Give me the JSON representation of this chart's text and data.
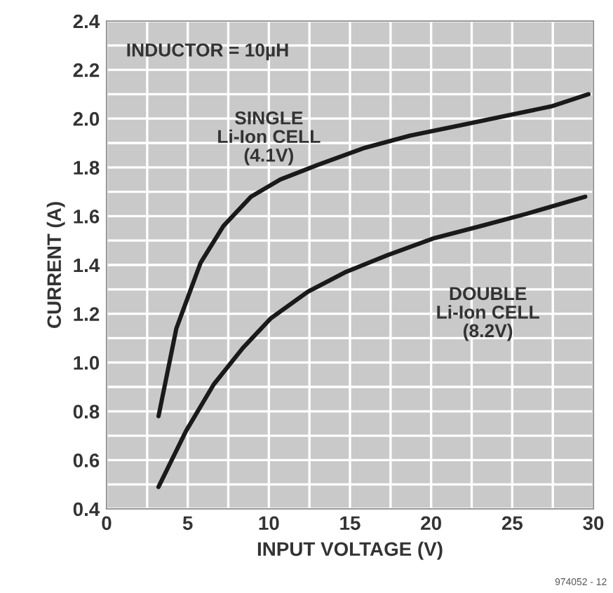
{
  "chart_data": {
    "type": "line",
    "xlabel": "INPUT VOLTAGE (V)",
    "ylabel": "CURRENT (A)",
    "xlim": [
      0,
      30
    ],
    "ylim": [
      0.4,
      2.4
    ],
    "xticks": [
      0,
      {
        "value": 2.5,
        "label": null
      },
      5,
      {
        "value": 7.5,
        "label": null
      },
      10,
      {
        "value": 12.5,
        "label": null
      },
      15,
      {
        "value": 17.5,
        "label": null
      },
      20,
      {
        "value": 22.5,
        "label": null
      },
      25,
      {
        "value": 27.5,
        "label": null
      },
      30
    ],
    "yticks": [
      0.4,
      {
        "value": 0.5,
        "label": null
      },
      0.6,
      {
        "value": 0.7,
        "label": null
      },
      0.8,
      {
        "value": 0.9,
        "label": null
      },
      {
        "value": 1.0,
        "label": "1.0"
      },
      {
        "value": 1.1,
        "label": null
      },
      1.2,
      {
        "value": 1.3,
        "label": null
      },
      1.4,
      {
        "value": 1.5,
        "label": null
      },
      1.6,
      {
        "value": 1.7,
        "label": null
      },
      1.8,
      {
        "value": 1.9,
        "label": null
      },
      {
        "value": 2.0,
        "label": "2.0"
      },
      {
        "value": 2.1,
        "label": null
      },
      2.2,
      {
        "value": 2.3,
        "label": null
      },
      2.4
    ],
    "grid": true,
    "series": [
      {
        "name": "SINGLE\nLi-Ion CELL\n(4.1V)",
        "color": "#1a1a1a",
        "x": [
          3.2,
          4.3,
          5.8,
          7.2,
          8.9,
          10.7,
          13,
          15.9,
          18.7,
          21.6,
          24.5,
          27.4,
          29.7
        ],
        "values": [
          0.78,
          1.14,
          1.41,
          1.56,
          1.68,
          1.75,
          1.81,
          1.88,
          1.93,
          1.97,
          2.01,
          2.05,
          2.1
        ]
      },
      {
        "name": "DOUBLE\nLi-Ion CELL\n(8.2V)",
        "color": "#1a1a1a",
        "x": [
          3.2,
          4.9,
          6.6,
          8.4,
          10.1,
          12.4,
          14.7,
          17.3,
          20.2,
          23.1,
          25.9,
          29.5
        ],
        "values": [
          0.49,
          0.72,
          0.91,
          1.06,
          1.18,
          1.29,
          1.37,
          1.44,
          1.51,
          1.56,
          1.61,
          1.68
        ]
      }
    ],
    "annotations": [
      "INDUCTOR = 10µH",
      "974052 - 12"
    ]
  }
}
